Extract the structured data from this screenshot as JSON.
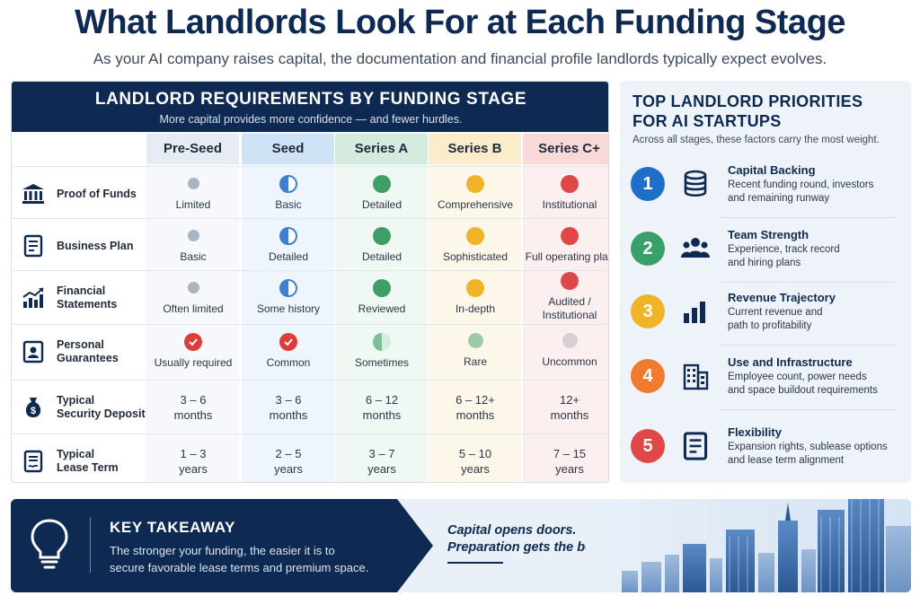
{
  "title": "What Landlords Look For at Each Funding Stage",
  "subtitle": "As your AI company raises capital, the documentation and financial profile landlords typically expect evolves.",
  "table": {
    "header": "LANDLORD REQUIREMENTS BY FUNDING STAGE",
    "subheader": "More capital provides more confidence — and fewer hurdles.",
    "stages": [
      {
        "name": "Pre-Seed",
        "head_color": "#e6ecf3",
        "col_color": "#f6f8fb",
        "dot_color": "#a9b4c1"
      },
      {
        "name": "Seed",
        "head_color": "#cfe3f7",
        "col_color": "#eef5fc",
        "dot_color": "#3f7fd0"
      },
      {
        "name": "Series A",
        "head_color": "#d4ecdf",
        "col_color": "#eff8f2",
        "dot_color": "#3f9e68"
      },
      {
        "name": "Series B",
        "head_color": "#fbeccb",
        "col_color": "#fdf7ea",
        "dot_color": "#f0b429"
      },
      {
        "name": "Series C+",
        "head_color": "#f9d9d8",
        "col_color": "#fcefef",
        "dot_color": "#e04848"
      }
    ],
    "rows": [
      {
        "label": [
          "Proof of Funds"
        ],
        "icon": "bank-icon",
        "cells": [
          [
            "Limited"
          ],
          [
            "Basic"
          ],
          [
            "Detailed"
          ],
          [
            "Comprehensive"
          ],
          [
            "Institutional"
          ]
        ]
      },
      {
        "label": [
          "Business Plan"
        ],
        "icon": "document-icon",
        "cells": [
          [
            "Basic"
          ],
          [
            "Detailed"
          ],
          [
            "Detailed"
          ],
          [
            "Sophisticated"
          ],
          [
            "Full operating plan"
          ]
        ]
      },
      {
        "label": [
          "Financial",
          "Statements"
        ],
        "icon": "growth-chart-icon",
        "cells": [
          [
            "Often limited"
          ],
          [
            "Some history"
          ],
          [
            "Reviewed"
          ],
          [
            "In-depth"
          ],
          [
            "Audited /",
            "Institutional"
          ]
        ]
      },
      {
        "label": [
          "Personal",
          "Guarantees"
        ],
        "icon": "id-badge-icon",
        "cells": [
          [
            "Usually required"
          ],
          [
            "Common"
          ],
          [
            "Sometimes"
          ],
          [
            "Rare"
          ],
          [
            "Uncommon"
          ]
        ]
      },
      {
        "label": [
          "Typical",
          "Security Deposit"
        ],
        "icon": "money-bag-icon",
        "cells": [
          [
            "3 – 6",
            "months"
          ],
          [
            "3 – 6",
            "months"
          ],
          [
            "6 – 12",
            "months"
          ],
          [
            "6 – 12+",
            "months"
          ],
          [
            "12+",
            "months"
          ]
        ]
      },
      {
        "label": [
          "Typical",
          "Lease Term"
        ],
        "icon": "contract-icon",
        "cells": [
          [
            "1 – 3",
            "years"
          ],
          [
            "2 – 5",
            "years"
          ],
          [
            "3 – 7",
            "years"
          ],
          [
            "5 – 10",
            "years"
          ],
          [
            "7 – 15",
            "years"
          ]
        ]
      }
    ]
  },
  "priorities": {
    "title_lines": [
      "TOP LANDLORD PRIORITIES",
      "FOR AI STARTUPS"
    ],
    "subtitle": "Across all stages, these factors carry the most weight.",
    "items": [
      {
        "num": "1",
        "color": "#1f6fc9",
        "icon": "database-stack-icon",
        "title": "Capital Backing",
        "desc": [
          "Recent funding round, investors",
          "and remaining runway"
        ]
      },
      {
        "num": "2",
        "color": "#3aa06a",
        "icon": "team-icon",
        "title": "Team Strength",
        "desc": [
          "Experience, track record",
          "and hiring plans"
        ]
      },
      {
        "num": "3",
        "color": "#f0b429",
        "icon": "bar-chart-icon",
        "title": "Revenue Trajectory",
        "desc": [
          "Current revenue and",
          "path to profitability"
        ]
      },
      {
        "num": "4",
        "color": "#f07a2e",
        "icon": "office-building-icon",
        "title": "Use and Infrastructure",
        "desc": [
          "Employee count, power needs",
          "and space buildout requirements"
        ]
      },
      {
        "num": "5",
        "color": "#e04848",
        "icon": "document-icon",
        "title": "Flexibility",
        "desc": [
          "Expansion rights, sublease options",
          "and lease term alignment"
        ]
      }
    ]
  },
  "takeaway": {
    "title": "KEY TAKEAWAY",
    "body": [
      "The stronger your funding, the easier it is to",
      "secure favorable lease terms and premium space."
    ],
    "quote": [
      "Capital opens doors.",
      "Preparation gets the best terms."
    ]
  }
}
